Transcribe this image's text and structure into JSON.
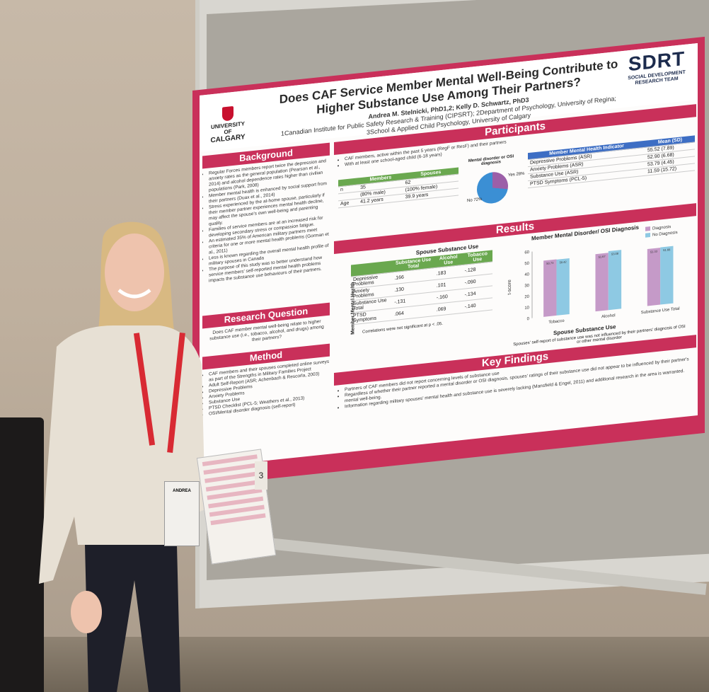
{
  "poster": {
    "title_line1": "Does CAF Service Member Mental Well-Being Contribute to",
    "title_line2": "Higher Substance Use Among Their Partners?",
    "authors": "Andrea M. Stelnicki, PhD1,2; Kelly D. Schwartz, PhD3",
    "affil1": "1Canadian Institute for Public Safety Research & Training (CIPSRT); 2Department of Psychology, University of Regina;",
    "affil2": "3School & Applied Child Psychology, University of Calgary",
    "logo_left_line1": "UNIVERSITY OF",
    "logo_left_line2": "CALGARY",
    "logo_right_big": "SDRT",
    "logo_right_line1": "SOCIAL DEVELOPMENT",
    "logo_right_line2": "RESEARCH TEAM",
    "sections": {
      "background": "Background",
      "research_question": "Research Question",
      "method": "Method",
      "participants": "Participants",
      "results": "Results",
      "key_findings": "Key Findings"
    },
    "background_items": [
      "Regular Forces members report twice the depression and anxiety rates as the general population (Pearson et al., 2014) and alcohol dependence rates higher than civilian populations (Park, 2008)",
      "Member mental health is enhanced by social support from their partners (Duax et al., 2014)",
      "Stress experienced by the at-home spouse, particularly if their member partner experiences mental health decline, may affect the spouse's own well-being and parenting quality.",
      "Families of service members are at an increased risk for developing secondary stress or compassion fatigue.",
      "An estimated 35% of American military partners meet criteria for one or more mental health problems (Gorman et al., 2011)",
      "Less is known regarding the overall mental health profile of military spouses in Canada",
      "The purpose of this study was to better understand how service members' self-reported mental health problems impacts the substance use behaviours of their partners."
    ],
    "research_question_text": "Does CAF member mental well-being relate to higher substance use (i.e., tobacco, alcohol, and drugs) among their partners?",
    "method_items": [
      "CAF members and their spouses completed online surveys as part of the Strengths in Military Families Project",
      "Adult Self-Report (ASR; Achenbach & Rescorla, 2003)",
      "Depressive Problems",
      "Anxiety Problems",
      "Substance Use",
      "PTSD Checklist (PCL-5; Weathers et al., 2013)",
      "OSI/Mental disorder diagnosis (self-report)"
    ],
    "participants_items": [
      "CAF members, active within the past 5 years (RegF or ResF) and their partners",
      "With at least one school-aged child (6-18 years)"
    ],
    "demo_table": {
      "headers": [
        "",
        "Members",
        "Spouses"
      ],
      "rows": [
        [
          "n",
          "35",
          "62"
        ],
        [
          "",
          "(80% male)",
          "(100% female)"
        ],
        [
          "Age",
          "41.2 years",
          "39.9 years"
        ]
      ]
    },
    "pie_label": "Mental disorder or OSI diagnosis",
    "pie_yes": "Yes 28%",
    "pie_no": "No 72%",
    "pie_data": [
      28,
      72
    ],
    "mh_table": {
      "headers": [
        "Member Mental Health Indicator",
        "Mean (SD)"
      ],
      "rows": [
        [
          "Depressive Problems (ASR)",
          "55.52 (7.89)"
        ],
        [
          "Anxiety Problems (ASR)",
          "52.90 (6.68)"
        ],
        [
          "Substance Use (ASR)",
          "53.79 (4.45)"
        ],
        [
          "PTSD Symptoms (PCL-5)",
          "11.59 (15.72)"
        ]
      ]
    },
    "corr_title": "Spouse Substance Use",
    "corr_side": "Member Mental Health",
    "corr_table": {
      "headers": [
        "",
        "Substance Use Total",
        "Alcohol Use",
        "Tobacco Use"
      ],
      "rows": [
        [
          "Depressive Problems",
          ".166",
          ".183",
          "-.128"
        ],
        [
          "Anxiety Problems",
          ".130",
          ".101",
          "-.090"
        ],
        [
          "Substance Use Total",
          "-.131",
          "-.160",
          "-.134"
        ],
        [
          "PTSD Symptoms",
          ".064",
          ".069",
          "-.140"
        ]
      ]
    },
    "corr_note": "Correlations were not significant at p < .05.",
    "key_findings": [
      "Partners of CAF members did not report concerning levels of substance use",
      "Regardless of whether their partner reported a mental disorder or OSI diagnosis, spouses' ratings of their substance use did not appear to be influenced by their partner's mental well-being.",
      "Information regarding military spouses' mental health and substance use is severely lacking (Mansfield & Engel, 2011) and additional research in the area is warranted."
    ],
    "chart_caption": "Spouse Substance Use",
    "chart_note": "Spouses' self-report of substance use was not influenced by their partners' diagnosis of OSI or other mental disorder",
    "handout_number": "3"
  },
  "chart_data": {
    "type": "bar",
    "title": "Member Mental Disorder/ OSI Diagnosis",
    "categories": [
      "Tobacco",
      "Alcohol",
      "Substance Use Total"
    ],
    "series": [
      {
        "name": "Diagnosis",
        "values": [
          50.73,
          51.67,
          51.33
        ]
      },
      {
        "name": "No Diagnosis",
        "values": [
          50.42,
          53.08,
          51.66
        ]
      }
    ],
    "ylabel": "t-score",
    "ylim": [
      0,
      60
    ],
    "yticks": [
      0,
      10,
      20,
      30,
      40,
      50,
      60
    ],
    "legend": "top-right",
    "colors": {
      "Diagnosis": "#c59ac8",
      "No Diagnosis": "#8ec9e3"
    }
  },
  "colors": {
    "poster_border": "#c9305a"
  },
  "badge": {
    "name": "ANDREA"
  }
}
